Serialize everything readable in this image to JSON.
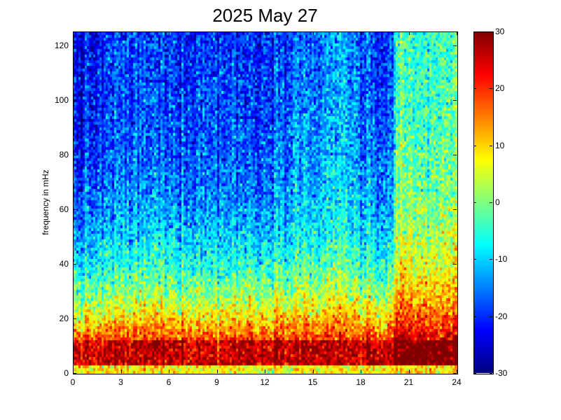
{
  "chart_data": {
    "type": "heatmap",
    "title": "2025 May 27",
    "xlabel": "",
    "ylabel": "frequency in mHz",
    "xlim": [
      0,
      24
    ],
    "ylim": [
      0,
      125
    ],
    "x_ticks": [
      "0",
      "3",
      "6",
      "9",
      "12",
      "15",
      "18",
      "21",
      "24"
    ],
    "y_ticks": [
      "0",
      "20",
      "40",
      "60",
      "80",
      "100",
      "120"
    ],
    "colorbar": {
      "colormap": "jet",
      "clim": [
        -30,
        30
      ],
      "ticks": [
        "30",
        "20",
        "10",
        "0",
        "-10",
        "-20",
        "-30"
      ]
    },
    "description_profile": {
      "time_hours": [
        0,
        1,
        2,
        3,
        4,
        5,
        6,
        7,
        8,
        9,
        10,
        11,
        12,
        13,
        14,
        15,
        16,
        17,
        18,
        19,
        20,
        20.3,
        21,
        22,
        23,
        24
      ],
      "low_band_level": [
        22,
        22,
        23,
        24,
        24,
        25,
        25,
        25,
        24,
        23,
        24,
        25,
        25,
        26,
        26,
        25,
        24,
        24,
        24,
        23,
        23,
        30,
        30,
        29,
        28,
        28
      ],
      "high_band_level": [
        -24,
        -24,
        -22,
        -20,
        -20,
        -20,
        -20,
        -20,
        -20,
        -20,
        -20,
        -21,
        -20,
        -18,
        -16,
        -17,
        -16,
        -12,
        -18,
        -20,
        -22,
        -4,
        -6,
        -6,
        -4,
        -5
      ]
    }
  }
}
